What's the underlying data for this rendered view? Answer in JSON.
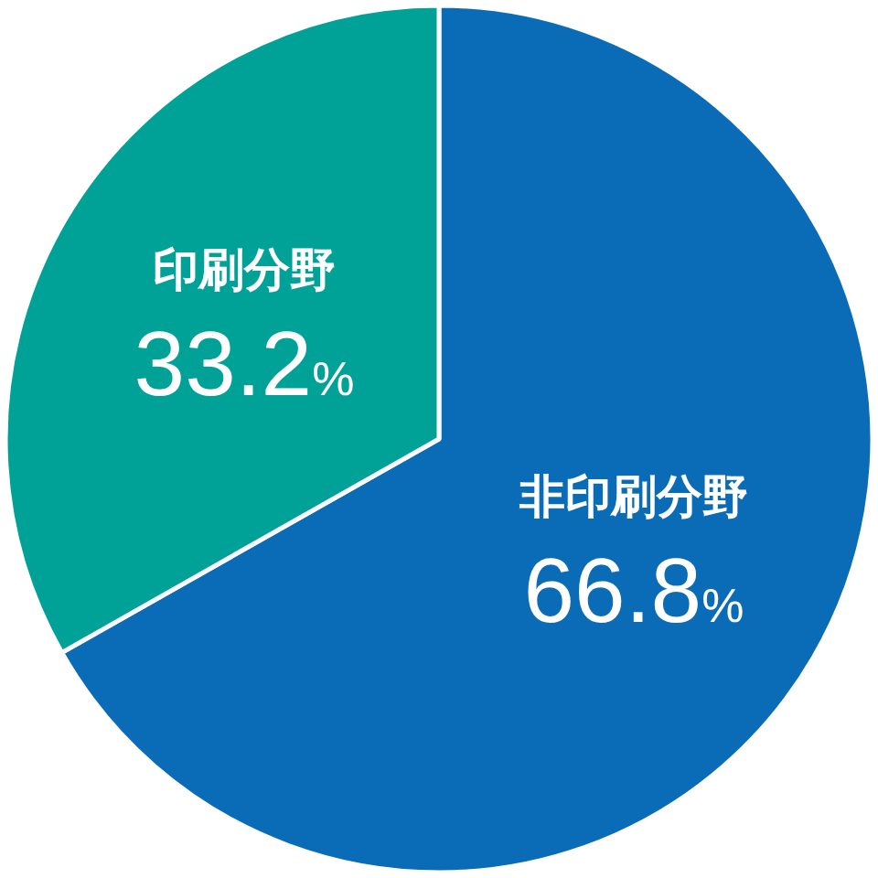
{
  "chart_data": {
    "type": "pie",
    "categories": [
      "非印刷分野",
      "印刷分野"
    ],
    "values": [
      66.8,
      33.2
    ],
    "colors": [
      "#0a6cb6",
      "#00a298"
    ],
    "value_labels": [
      "66.8%",
      "33.2%"
    ]
  }
}
